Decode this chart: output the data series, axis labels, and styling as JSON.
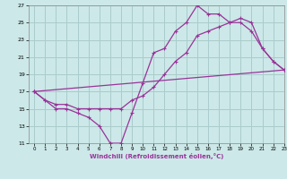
{
  "xlabel": "Windchill (Refroidissement éolien,°C)",
  "bg_color": "#cce8e8",
  "grid_color": "#aacccc",
  "line_color": "#993399",
  "line1_x": [
    0,
    1,
    2,
    3,
    4,
    5,
    6,
    7,
    8,
    9,
    10,
    11,
    12,
    13,
    14,
    15,
    16,
    17,
    18,
    19,
    20,
    21,
    22,
    23
  ],
  "line1_y": [
    17,
    16,
    15,
    15,
    14.5,
    14,
    13,
    11,
    11,
    14.5,
    18,
    21.5,
    22,
    24,
    25,
    27,
    26,
    26,
    25,
    25,
    24,
    22,
    20.5,
    19.5
  ],
  "line2_x": [
    0,
    1,
    2,
    3,
    4,
    5,
    6,
    7,
    8,
    9,
    10,
    11,
    12,
    13,
    14,
    15,
    16,
    17,
    18,
    19,
    20,
    21,
    22,
    23
  ],
  "line2_y": [
    17,
    16,
    15.5,
    15.5,
    15,
    15,
    15,
    15,
    15,
    16,
    16.5,
    17.5,
    19,
    20.5,
    21.5,
    23.5,
    24,
    24.5,
    25,
    25.5,
    25,
    22,
    20.5,
    19.5
  ],
  "line3_x": [
    0,
    23
  ],
  "line3_y": [
    17,
    19.5
  ],
  "xlim": [
    -0.5,
    23
  ],
  "ylim": [
    11,
    27
  ],
  "xticks": [
    0,
    1,
    2,
    3,
    4,
    5,
    6,
    7,
    8,
    9,
    10,
    11,
    12,
    13,
    14,
    15,
    16,
    17,
    18,
    19,
    20,
    21,
    22,
    23
  ],
  "yticks": [
    11,
    13,
    15,
    17,
    19,
    21,
    23,
    25,
    27
  ]
}
